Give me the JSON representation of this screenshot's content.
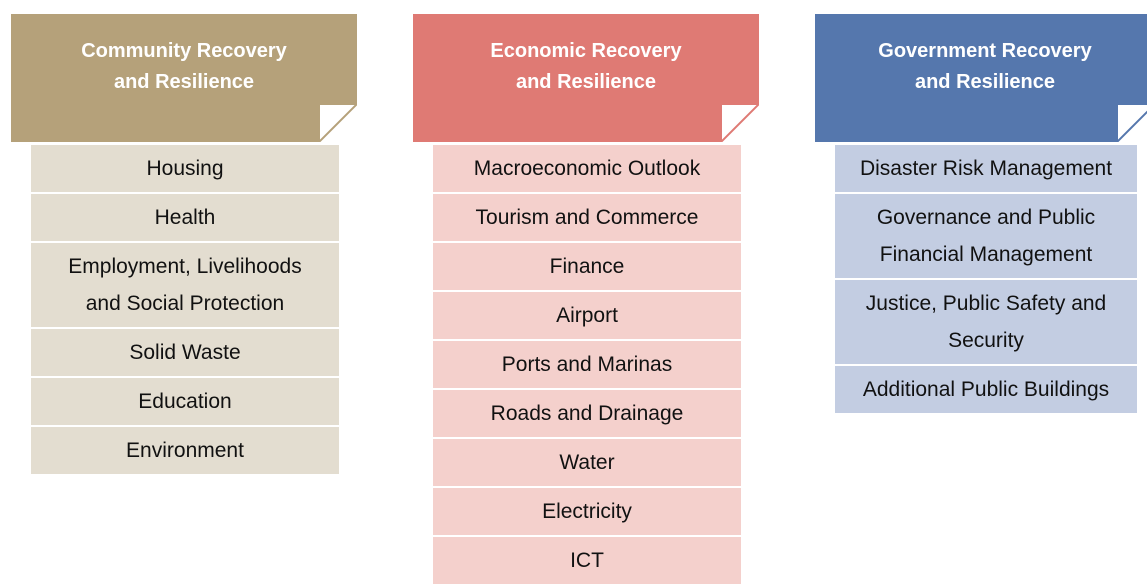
{
  "columns": [
    {
      "title": "Community Recovery\nand Resilience",
      "items": [
        "Housing",
        "Health",
        "Employment, Livelihoods\nand Social Protection",
        "Solid Waste",
        "Education",
        "Environment"
      ]
    },
    {
      "title": "Economic Recovery\nand Resilience",
      "items": [
        "Macroeconomic Outlook",
        "Tourism and Commerce",
        "Finance",
        "Airport",
        "Ports and Marinas",
        "Roads and Drainage",
        "Water",
        "Electricity",
        "ICT"
      ]
    },
    {
      "title": "Government Recovery\nand Resilience",
      "items": [
        "Disaster Risk Management",
        "Governance and Public\nFinancial Management",
        "Justice, Public Safety and\nSecurity",
        "Additional Public Buildings"
      ]
    }
  ]
}
